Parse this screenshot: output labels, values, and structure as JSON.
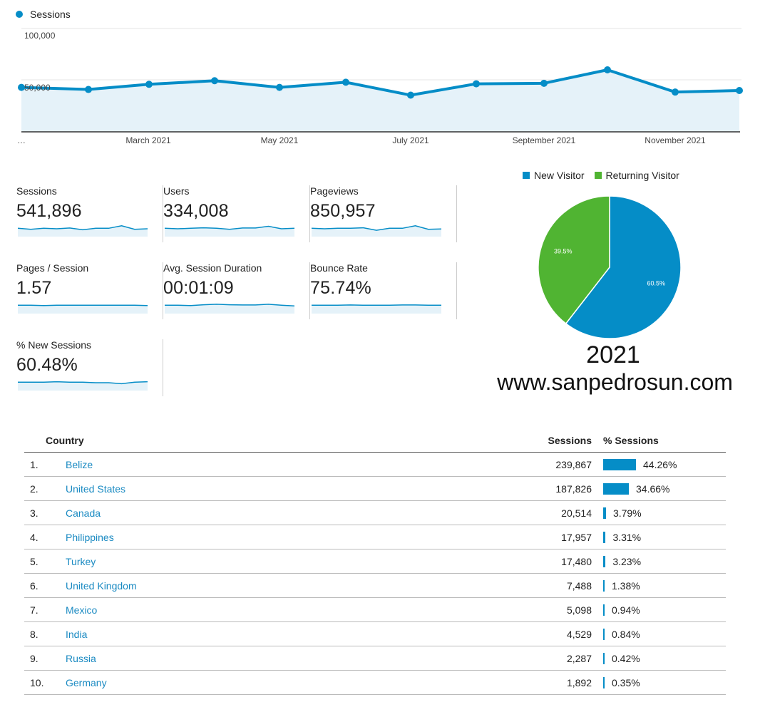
{
  "sessions_chart": {
    "legend": "Sessions",
    "color": "#058dc7",
    "y_ticks": [
      "100,000",
      "50,000"
    ],
    "x_labels": [
      "…",
      "March 2021",
      "May 2021",
      "July 2021",
      "September 2021",
      "November 2021"
    ],
    "chart_data": {
      "type": "line",
      "y_label": "Sessions",
      "ylim": [
        0,
        100000
      ],
      "x": [
        "Jan 2021",
        "Feb 2021",
        "Mar 2021",
        "Apr 2021",
        "May 2021",
        "Jun 2021",
        "Jul 2021",
        "Aug 2021",
        "Sep 2021",
        "Oct 2021",
        "Nov 2021",
        "Dec 2021"
      ],
      "series": [
        {
          "name": "Sessions",
          "values": [
            43000,
            41000,
            46000,
            49500,
            43000,
            48000,
            35500,
            46500,
            47000,
            60000,
            38500,
            40000
          ]
        }
      ]
    }
  },
  "metrics": [
    {
      "label": "Sessions",
      "value": "541,896",
      "spark": [
        0.55,
        0.45,
        0.55,
        0.5,
        0.58,
        0.4,
        0.55,
        0.55,
        0.8,
        0.45,
        0.5
      ]
    },
    {
      "label": "Users",
      "value": "334,008",
      "spark": [
        0.55,
        0.5,
        0.55,
        0.6,
        0.55,
        0.45,
        0.58,
        0.58,
        0.75,
        0.5,
        0.55
      ]
    },
    {
      "label": "Pageviews",
      "value": "850,957",
      "spark": [
        0.55,
        0.5,
        0.55,
        0.55,
        0.6,
        0.35,
        0.55,
        0.55,
        0.8,
        0.45,
        0.48
      ]
    },
    {
      "label": "Pages / Session",
      "value": "1.57",
      "spark": [
        0.55,
        0.55,
        0.52,
        0.55,
        0.55,
        0.55,
        0.55,
        0.55,
        0.55,
        0.55,
        0.52
      ]
    },
    {
      "label": "Avg. Session Duration",
      "value": "00:01:09",
      "spark": [
        0.55,
        0.55,
        0.52,
        0.6,
        0.65,
        0.6,
        0.58,
        0.58,
        0.65,
        0.55,
        0.48
      ]
    },
    {
      "label": "Bounce Rate",
      "value": "75.74%",
      "spark": [
        0.55,
        0.55,
        0.55,
        0.58,
        0.55,
        0.55,
        0.55,
        0.58,
        0.58,
        0.55,
        0.55
      ]
    },
    {
      "label": "% New Sessions",
      "value": "60.48%",
      "spark": [
        0.55,
        0.55,
        0.55,
        0.6,
        0.55,
        0.55,
        0.5,
        0.5,
        0.4,
        0.55,
        0.6
      ]
    }
  ],
  "pie": {
    "legend": [
      {
        "label": "New Visitor",
        "color": "#058dc7"
      },
      {
        "label": "Returning Visitor",
        "color": "#50b432"
      }
    ],
    "chart_data": {
      "type": "pie",
      "slices": [
        {
          "name": "New Visitor",
          "value": 60.5,
          "label": "60.5%",
          "color": "#058dc7"
        },
        {
          "name": "Returning Visitor",
          "value": 39.5,
          "label": "39.5%",
          "color": "#50b432"
        }
      ]
    },
    "year": "2021",
    "site": "www.sanpedrosun.com"
  },
  "table": {
    "headers": {
      "country": "Country",
      "sessions": "Sessions",
      "pct": "% Sessions"
    },
    "rows": [
      {
        "idx": "1.",
        "country": "Belize",
        "sessions": "239,867",
        "pct": "44.26%",
        "share": 44.26
      },
      {
        "idx": "2.",
        "country": "United States",
        "sessions": "187,826",
        "pct": "34.66%",
        "share": 34.66
      },
      {
        "idx": "3.",
        "country": "Canada",
        "sessions": "20,514",
        "pct": "3.79%",
        "share": 3.79
      },
      {
        "idx": "4.",
        "country": "Philippines",
        "sessions": "17,957",
        "pct": "3.31%",
        "share": 3.31
      },
      {
        "idx": "5.",
        "country": "Turkey",
        "sessions": "17,480",
        "pct": "3.23%",
        "share": 3.23
      },
      {
        "idx": "6.",
        "country": "United Kingdom",
        "sessions": "7,488",
        "pct": "1.38%",
        "share": 1.38
      },
      {
        "idx": "7.",
        "country": "Mexico",
        "sessions": "5,098",
        "pct": "0.94%",
        "share": 0.94
      },
      {
        "idx": "8.",
        "country": "India",
        "sessions": "4,529",
        "pct": "0.84%",
        "share": 0.84
      },
      {
        "idx": "9.",
        "country": "Russia",
        "sessions": "2,287",
        "pct": "0.42%",
        "share": 0.42
      },
      {
        "idx": "10.",
        "country": "Germany",
        "sessions": "1,892",
        "pct": "0.35%",
        "share": 0.35
      }
    ]
  }
}
